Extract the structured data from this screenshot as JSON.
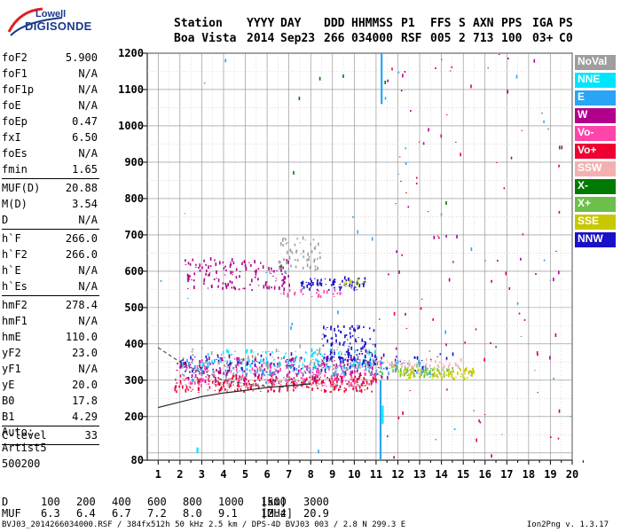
{
  "logo": {
    "line1": "Lowell",
    "line2": "DIGISONDE"
  },
  "header": {
    "row1": [
      "Station",
      "YYYY",
      "DAY",
      "DDD",
      "HHMMSS",
      "P1",
      "FFS",
      "S",
      "AXN",
      "PPS",
      "IGA",
      "PS"
    ],
    "row2": [
      "Boa Vista",
      "2014",
      "Sep23",
      "266",
      "034000",
      "RSF",
      "005",
      "2",
      "713",
      "100",
      "03+",
      "C0"
    ]
  },
  "params": [
    [
      {
        "k": "foF2",
        "v": "5.900"
      },
      {
        "k": "foF1",
        "v": "N/A"
      },
      {
        "k": "foF1p",
        "v": "N/A"
      },
      {
        "k": "foE",
        "v": "N/A"
      },
      {
        "k": "foEp",
        "v": "0.47"
      },
      {
        "k": "fxI",
        "v": "6.50"
      },
      {
        "k": "foEs",
        "v": "N/A"
      },
      {
        "k": "fmin",
        "v": "1.65"
      }
    ],
    [
      {
        "k": "MUF(D)",
        "v": "20.88"
      },
      {
        "k": "M(D)",
        "v": "3.54"
      },
      {
        "k": "D",
        "v": "N/A"
      }
    ],
    [
      {
        "k": "h`F",
        "v": "266.0"
      },
      {
        "k": "h`F2",
        "v": "266.0"
      },
      {
        "k": "h`E",
        "v": "N/A"
      },
      {
        "k": "h`Es",
        "v": "N/A"
      }
    ],
    [
      {
        "k": "hmF2",
        "v": "278.4"
      },
      {
        "k": "hmF1",
        "v": "N/A"
      },
      {
        "k": "hmE",
        "v": "110.0"
      },
      {
        "k": "yF2",
        "v": "23.0"
      },
      {
        "k": "yF1",
        "v": "N/A"
      },
      {
        "k": "yE",
        "v": "20.0"
      },
      {
        "k": "B0",
        "v": "17.8"
      },
      {
        "k": "B1",
        "v": "4.29"
      }
    ],
    [
      {
        "k": "C-level",
        "v": "33"
      }
    ]
  ],
  "auto": {
    "line1": "Auto:",
    "line2": "Artist5",
    "line3": "500200"
  },
  "dtable": {
    "row_d": {
      "label": "D",
      "values": [
        "100",
        "200",
        "400",
        "600",
        "800",
        "1000",
        "1500",
        "3000"
      ],
      "unit": "[km]"
    },
    "row_muf": {
      "label": "MUF",
      "values": [
        "6.3",
        "6.4",
        "6.7",
        "7.2",
        "8.0",
        "9.1",
        "12.4",
        "20.9"
      ],
      "unit": "[MHz]"
    }
  },
  "footer": "BVJ03_2014266034000.RSF / 384fx512h 50 kHz 2.5 km / DPS-4D BVJ03 003 / 2.8 N 299.3 E",
  "version": "Ion2Png v. 1.3.17",
  "legend": [
    {
      "label": "NoVal",
      "color": "#9e9e9e"
    },
    {
      "label": "NNE",
      "color": "#00e5ff"
    },
    {
      "label": "E",
      "color": "#2aa4f4"
    },
    {
      "label": "W",
      "color": "#b0008c"
    },
    {
      "label": "Vo-",
      "color": "#ff44aa"
    },
    {
      "label": "Vo+",
      "color": "#ee0033"
    },
    {
      "label": "SSW",
      "color": "#f4b0b0"
    },
    {
      "label": "X-",
      "color": "#007a00"
    },
    {
      "label": "X+",
      "color": "#6cbf4a"
    },
    {
      "label": "SSE",
      "color": "#c8c800"
    },
    {
      "label": "NNW",
      "color": "#1a10c8"
    }
  ],
  "chart_data": {
    "type": "scatter",
    "xlim": [
      0.5,
      20
    ],
    "ylim": [
      80,
      1200
    ],
    "x_ticks": [
      1,
      2,
      3,
      4,
      5,
      6,
      7,
      8,
      9,
      10,
      11,
      12,
      13,
      14,
      15,
      16,
      17,
      18,
      19,
      20
    ],
    "y_ticks": [
      80,
      200,
      300,
      400,
      500,
      600,
      700,
      800,
      900,
      1000,
      1100,
      1200
    ],
    "grid": true,
    "clusters": [
      {
        "color": "#ee0033",
        "xr": [
          1.7,
          11.0
        ],
        "yr": [
          265,
          310
        ],
        "n": 260
      },
      {
        "color": "#b0008c",
        "xr": [
          1.8,
          11.5
        ],
        "yr": [
          290,
          360
        ],
        "n": 260
      },
      {
        "color": "#ff44aa",
        "xr": [
          2.0,
          11.0
        ],
        "yr": [
          280,
          340
        ],
        "n": 160
      },
      {
        "color": "#2aa4f4",
        "xr": [
          2.0,
          13.5
        ],
        "yr": [
          310,
          350
        ],
        "n": 180
      },
      {
        "color": "#00e5ff",
        "xr": [
          3.0,
          11.0
        ],
        "yr": [
          330,
          380
        ],
        "n": 90
      },
      {
        "color": "#1a10c8",
        "xr": [
          8.5,
          11.0
        ],
        "yr": [
          340,
          450
        ],
        "n": 120
      },
      {
        "color": "#c8c800",
        "xr": [
          12.0,
          15.5
        ],
        "yr": [
          300,
          330
        ],
        "n": 90
      },
      {
        "color": "#6cbf4a",
        "xr": [
          11.0,
          14.5
        ],
        "yr": [
          305,
          335
        ],
        "n": 50
      },
      {
        "color": "#f4b0b0",
        "xr": [
          10.0,
          15.0
        ],
        "yr": [
          330,
          355
        ],
        "n": 60
      },
      {
        "color": "#9e9e9e",
        "xr": [
          2.0,
          11.0
        ],
        "yr": [
          280,
          390
        ],
        "n": 120
      },
      {
        "color": "#1a10c8",
        "xr": [
          2.0,
          14.5
        ],
        "yr": [
          320,
          370
        ],
        "n": 70
      },
      {
        "color": "#b0008c",
        "xr": [
          2.2,
          7.0
        ],
        "yr": [
          545,
          630
        ],
        "n": 140
      },
      {
        "color": "#9e9e9e",
        "xr": [
          6.5,
          8.5
        ],
        "yr": [
          600,
          690
        ],
        "n": 60
      },
      {
        "color": "#1a10c8",
        "xr": [
          7.5,
          10.5
        ],
        "yr": [
          545,
          580
        ],
        "n": 70
      },
      {
        "color": "#ff44aa",
        "xr": [
          6.5,
          9.5
        ],
        "yr": [
          525,
          545
        ],
        "n": 25
      },
      {
        "color": "#c8c800",
        "xr": [
          9.5,
          10.5
        ],
        "yr": [
          555,
          575
        ],
        "n": 15
      },
      {
        "color": "#b0008c",
        "xr": [
          11.5,
          19.5
        ],
        "yr": [
          80,
          1200
        ],
        "n": 60
      },
      {
        "color": "#ee0033",
        "xr": [
          11.5,
          19.5
        ],
        "yr": [
          80,
          1200
        ],
        "n": 40
      },
      {
        "color": "#2aa4f4",
        "xr": [
          1.0,
          20.0
        ],
        "yr": [
          80,
          1200
        ],
        "n": 40
      },
      {
        "color": "#007a00",
        "xr": [
          1.0,
          20.0
        ],
        "yr": [
          80,
          1200
        ],
        "n": 15
      }
    ],
    "streaks": [
      {
        "color": "#2aa4f4",
        "x": 11.25,
        "y1": 1060,
        "y2": 1200
      },
      {
        "color": "#2aa4f4",
        "x": 11.2,
        "y1": 80,
        "y2": 300
      },
      {
        "color": "#00e5ff",
        "x": 11.3,
        "y1": 180,
        "y2": 230
      },
      {
        "color": "#00e5ff",
        "x": 2.8,
        "y1": 100,
        "y2": 115
      }
    ],
    "curves": [
      {
        "style": "solid",
        "points": [
          [
            1,
            225
          ],
          [
            2,
            240
          ],
          [
            3,
            255
          ],
          [
            4,
            265
          ],
          [
            5,
            272
          ],
          [
            6,
            280
          ],
          [
            7,
            285
          ],
          [
            8,
            290
          ]
        ]
      },
      {
        "style": "dashed",
        "points": [
          [
            1,
            390
          ],
          [
            2,
            350
          ],
          [
            3,
            320
          ],
          [
            4,
            300
          ],
          [
            5,
            290
          ],
          [
            6,
            283
          ],
          [
            7,
            280
          ]
        ]
      }
    ]
  }
}
